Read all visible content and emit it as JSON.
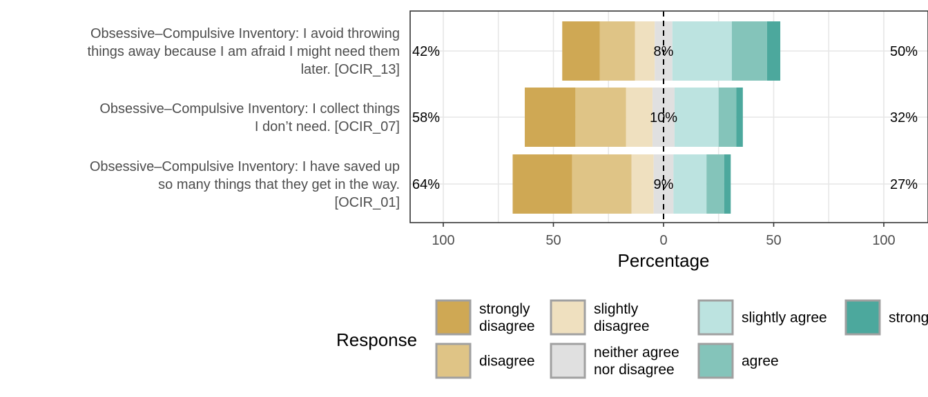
{
  "chart_data": {
    "type": "bar",
    "orientation": "horizontal",
    "style": "diverging-stacked",
    "xlabel": "Percentage",
    "xlim": [
      -100,
      100
    ],
    "xticks": [
      -100,
      -50,
      0,
      50,
      100
    ],
    "xtick_labels": [
      "100",
      "50",
      "0",
      "50",
      "100"
    ],
    "grid": true,
    "legend_position": "bottom",
    "legend_title": "Response",
    "levels": [
      "strongly disagree",
      "disagree",
      "slightly disagree",
      "neither agree nor disagree",
      "slightly agree",
      "agree",
      "strongly agree"
    ],
    "legend_labels": [
      "strongly\ndisagree",
      "disagree",
      "slightly\ndisagree",
      "neither agree\nnor disagree",
      "slightly agree",
      "agree",
      "strong"
    ],
    "colors": [
      "#CFA854",
      "#DFC486",
      "#EFE0BF",
      "#E0E0E0",
      "#BCE3E0",
      "#84C4BA",
      "#4CA89D"
    ],
    "items": [
      {
        "label": "Obsessive–Compulsive Inventory: I avoid throwing things away because I am afraid I might need them later. [OCIR_13]",
        "label_lines": [
          "Obsessive–Compulsive Inventory: I avoid throwing",
          "things away because I am afraid I might need them",
          "later. [OCIR_13]"
        ],
        "values": [
          17,
          16,
          9,
          8,
          27,
          16,
          6
        ],
        "low_pct": "42%",
        "neutral_pct": "8%",
        "high_pct": "50%"
      },
      {
        "label": "Obsessive–Compulsive Inventory: I collect things I don’t need. [OCIR_07]",
        "label_lines": [
          "Obsessive–Compulsive Inventory: I collect things",
          "I don’t need. [OCIR_07]"
        ],
        "values": [
          23,
          23,
          12,
          10,
          20,
          8,
          3
        ],
        "low_pct": "58%",
        "neutral_pct": "10%",
        "high_pct": "32%"
      },
      {
        "label": "Obsessive–Compulsive Inventory: I have saved up so many things that they get in the way. [OCIR_01]",
        "label_lines": [
          "Obsessive–Compulsive Inventory: I have saved up",
          "so many things that they get in the way.",
          "[OCIR_01]"
        ],
        "values": [
          27,
          27,
          10,
          9,
          15,
          8,
          3
        ],
        "low_pct": "64%",
        "neutral_pct": "9%",
        "high_pct": "27%"
      }
    ]
  }
}
